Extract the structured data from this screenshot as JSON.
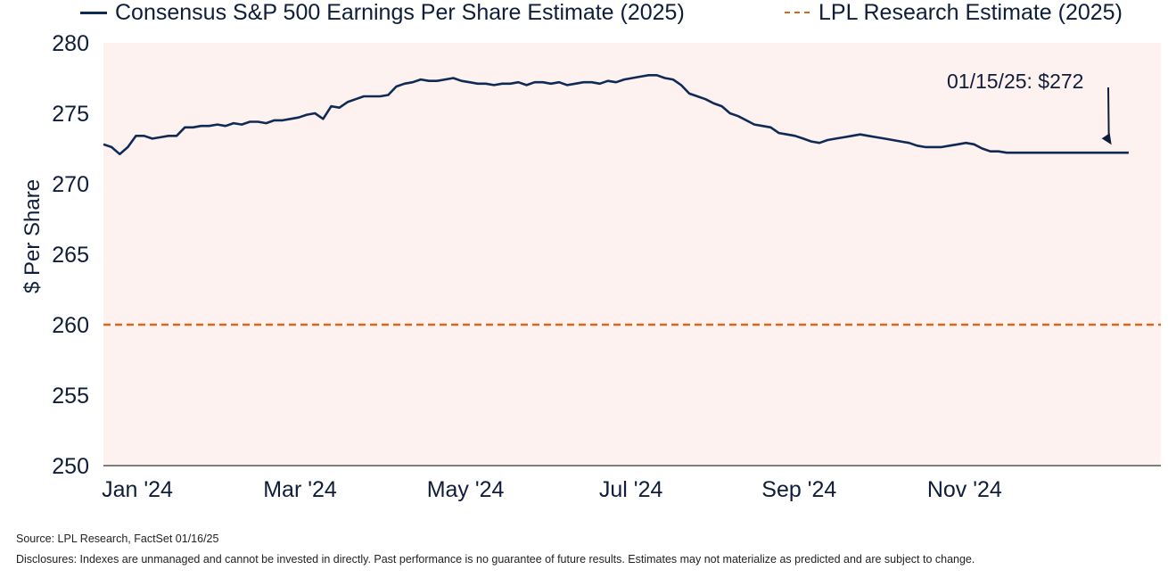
{
  "legend": {
    "series_label": "Consensus S&P 500 Earnings Per Share Estimate (2025)",
    "reference_label": "LPL Research Estimate (2025)"
  },
  "chart_data": {
    "type": "line",
    "title": "",
    "xlabel": "",
    "ylabel": "$ Per Share",
    "ylim": [
      250,
      280
    ],
    "yticks": [
      "280",
      "275",
      "270",
      "265",
      "260",
      "255",
      "250"
    ],
    "xticks": [
      "Jan '24",
      "Mar '24",
      "May '24",
      "Jul '24",
      "Sep '24",
      "Nov '24"
    ],
    "xlim_days": [
      0,
      380
    ],
    "xtick_days": [
      0,
      60,
      121,
      182,
      244,
      305
    ],
    "series": [
      {
        "name": "Consensus S&P 500 Earnings Per Share Estimate (2025)",
        "color": "#102a56",
        "x_days": [
          0,
          3,
          6,
          9,
          12,
          15,
          18,
          21,
          24,
          27,
          30,
          33,
          36,
          39,
          42,
          45,
          48,
          51,
          54,
          57,
          60,
          63,
          66,
          69,
          72,
          75,
          78,
          81,
          84,
          87,
          90,
          93,
          96,
          99,
          102,
          105,
          108,
          111,
          114,
          117,
          120,
          123,
          126,
          129,
          132,
          135,
          138,
          141,
          144,
          147,
          150,
          153,
          156,
          159,
          162,
          165,
          168,
          171,
          174,
          177,
          180,
          183,
          186,
          189,
          192,
          195,
          198,
          201,
          204,
          207,
          210,
          213,
          216,
          219,
          222,
          225,
          228,
          231,
          234,
          237,
          240,
          243,
          246,
          249,
          252,
          255,
          258,
          261,
          264,
          267,
          270,
          273,
          276,
          279,
          282,
          285,
          288,
          291,
          294,
          297,
          300,
          303,
          306,
          309,
          312,
          315,
          318,
          321,
          324,
          327,
          330,
          333,
          336,
          339,
          342,
          345,
          348,
          351,
          354,
          357,
          360,
          363,
          366,
          369,
          372,
          375,
          378
        ],
        "values": [
          272.8,
          272.6,
          272.1,
          272.6,
          273.4,
          273.4,
          273.2,
          273.3,
          273.4,
          273.4,
          274.0,
          274.0,
          274.1,
          274.1,
          274.2,
          274.1,
          274.3,
          274.2,
          274.4,
          274.4,
          274.3,
          274.5,
          274.5,
          274.6,
          274.7,
          274.9,
          275.0,
          274.6,
          275.5,
          275.4,
          275.8,
          276.0,
          276.2,
          276.2,
          276.2,
          276.3,
          276.9,
          277.1,
          277.2,
          277.4,
          277.3,
          277.3,
          277.4,
          277.5,
          277.3,
          277.2,
          277.1,
          277.1,
          277.0,
          277.1,
          277.1,
          277.2,
          277.0,
          277.2,
          277.2,
          277.1,
          277.2,
          277.0,
          277.1,
          277.2,
          277.2,
          277.1,
          277.3,
          277.2,
          277.4,
          277.5,
          277.6,
          277.7,
          277.7,
          277.5,
          277.4,
          277.0,
          276.4,
          276.2,
          276.0,
          275.7,
          275.5,
          275.0,
          274.8,
          274.5,
          274.2,
          274.1,
          274.0,
          273.6,
          273.5,
          273.4,
          273.2,
          273.0,
          272.9,
          273.1,
          273.2,
          273.3,
          273.4,
          273.5,
          273.4,
          273.3,
          273.2,
          273.1,
          273.0,
          272.9,
          272.7,
          272.6,
          272.6,
          272.6,
          272.7,
          272.8,
          272.9,
          272.8,
          272.5,
          272.3,
          272.3,
          272.2,
          272.2,
          272.2,
          272.2,
          272.2,
          272.2,
          272.2,
          272.2,
          272.2,
          272.2,
          272.2,
          272.2,
          272.2,
          272.2,
          272.2,
          272.2
        ]
      }
    ],
    "reference_line": {
      "name": "LPL Research Estimate (2025)",
      "value": 260,
      "color": "#d9661c",
      "style": "dashed"
    },
    "annotation": {
      "text": "01/15/25: $272",
      "day": 372,
      "value": 272.2
    },
    "background_color": "#fdf2f0"
  },
  "footer": {
    "source": "Source: LPL Research, FactSet 01/16/25",
    "disclosure": "Disclosures: Indexes are unmanaged and cannot be invested in directly. Past performance is no guarantee of future results. Estimates may not materialize as predicted and are subject to change."
  }
}
